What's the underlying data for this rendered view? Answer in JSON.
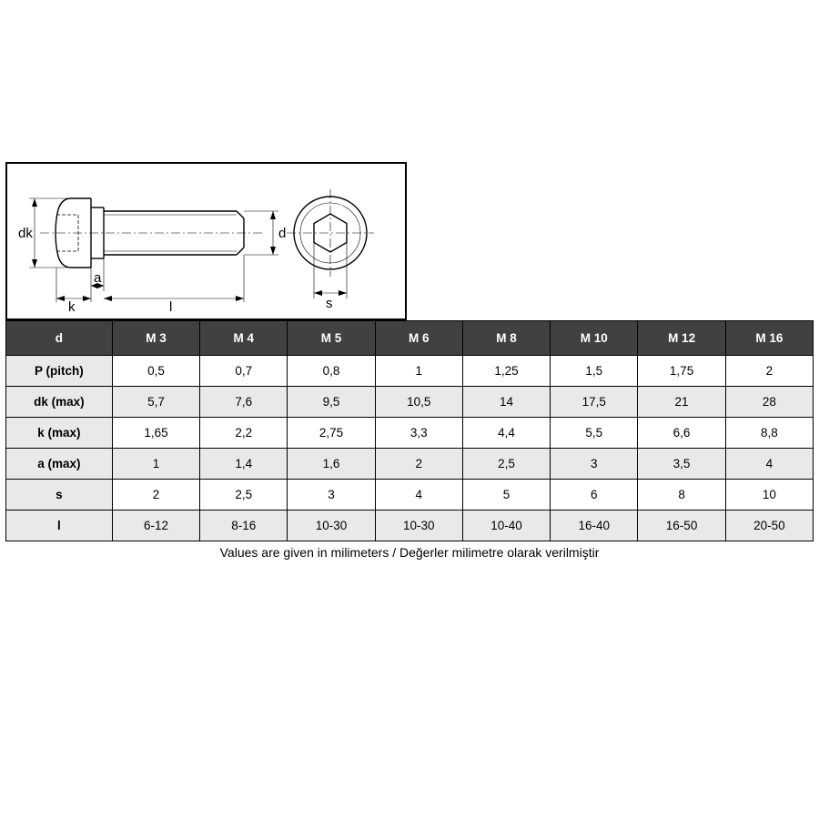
{
  "diagram": {
    "labels": {
      "dk": "dk",
      "k": "k",
      "a": "a",
      "l": "l",
      "d": "d",
      "s": "s"
    },
    "stroke_color": "#000000",
    "thin_stroke": 0.6,
    "thick_stroke": 1.4,
    "dashed": "4,2",
    "center_dash": "10,3,2,3"
  },
  "table": {
    "header_bg": "#414142",
    "header_fg": "#ffffff",
    "alt_bg": "#e9e9ea",
    "border_color": "#000000",
    "columns": [
      "d",
      "M 3",
      "M 4",
      "M 5",
      "M 6",
      "M 8",
      "M 10",
      "M 12",
      "M 16"
    ],
    "rows": [
      {
        "label": "P (pitch)",
        "alt": false,
        "cells": [
          "0,5",
          "0,7",
          "0,8",
          "1",
          "1,25",
          "1,5",
          "1,75",
          "2"
        ]
      },
      {
        "label": "dk (max)",
        "alt": true,
        "cells": [
          "5,7",
          "7,6",
          "9,5",
          "10,5",
          "14",
          "17,5",
          "21",
          "28"
        ]
      },
      {
        "label": "k (max)",
        "alt": false,
        "cells": [
          "1,65",
          "2,2",
          "2,75",
          "3,3",
          "4,4",
          "5,5",
          "6,6",
          "8,8"
        ]
      },
      {
        "label": "a (max)",
        "alt": true,
        "cells": [
          "1",
          "1,4",
          "1,6",
          "2",
          "2,5",
          "3",
          "3,5",
          "4"
        ]
      },
      {
        "label": "s",
        "alt": false,
        "cells": [
          "2",
          "2,5",
          "3",
          "4",
          "5",
          "6",
          "8",
          "10"
        ]
      },
      {
        "label": "l",
        "alt": true,
        "cells": [
          "6-12",
          "8-16",
          "10-30",
          "10-30",
          "10-40",
          "16-40",
          "16-50",
          "20-50"
        ]
      }
    ]
  },
  "footnote": "Values are given in milimeters / Değerler milimetre olarak verilmiştir"
}
